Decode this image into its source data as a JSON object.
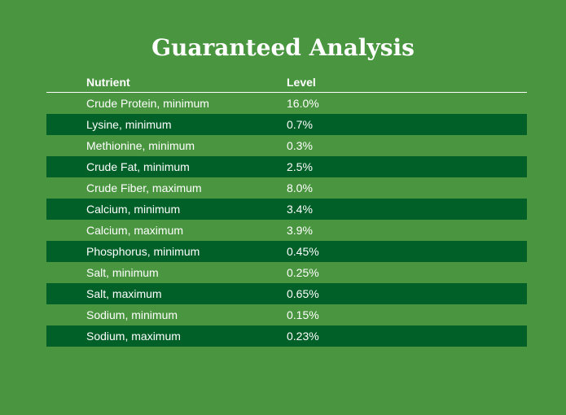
{
  "header": {
    "title": "Guaranteed Analysis"
  },
  "table": {
    "columns": [
      "Nutrient",
      "Level"
    ],
    "rows": [
      [
        "Crude Protein, minimum",
        "16.0%"
      ],
      [
        "Lysine, minimum",
        "0.7%"
      ],
      [
        "Methionine, minimum",
        "0.3%"
      ],
      [
        "Crude Fat, minimum",
        "2.5%"
      ],
      [
        "Crude Fiber, maximum",
        "8.0%"
      ],
      [
        "Calcium, minimum",
        "3.4%"
      ],
      [
        "Calcium, maximum",
        "3.9%"
      ],
      [
        "Phosphorus, minimum",
        "0.45%"
      ],
      [
        "Salt, minimum",
        "0.25%"
      ],
      [
        "Salt, maximum",
        "0.65%"
      ],
      [
        "Sodium, minimum",
        "0.15%"
      ],
      [
        "Sodium, maximum",
        "0.23%"
      ]
    ]
  }
}
